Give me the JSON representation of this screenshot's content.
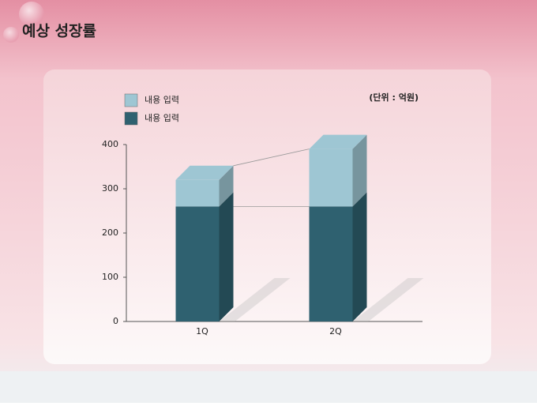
{
  "title": "예상 성장률",
  "chart_data": {
    "type": "bar3d_stacked",
    "unit_label": "(단위 : 억원)",
    "categories": [
      "1Q",
      "2Q"
    ],
    "series": [
      {
        "name": "내용 입력",
        "color": "#9ec6d3",
        "values": [
          60,
          130
        ]
      },
      {
        "name": "내용 입력",
        "color": "#2f6170",
        "values": [
          260,
          260
        ]
      }
    ],
    "ylim": [
      0,
      400
    ],
    "yticks": [
      0,
      100,
      200,
      300,
      400
    ]
  }
}
